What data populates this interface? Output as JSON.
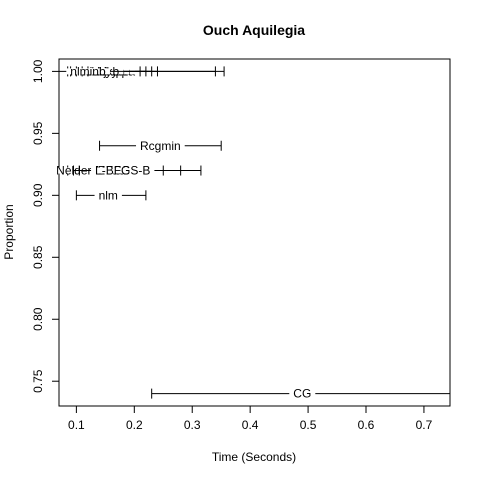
{
  "chart_data": {
    "type": "scatter",
    "title": "Ouch Aquilegia",
    "xlabel": "Time (Seconds)",
    "ylabel": "Proportion",
    "xlim": [
      0.07,
      0.745
    ],
    "ylim": [
      0.73,
      1.01
    ],
    "xticks": [
      "0.1",
      "0.2",
      "0.3",
      "0.4",
      "0.5",
      "0.6",
      "0.7"
    ],
    "xtick_values": [
      0.1,
      0.2,
      0.3,
      0.4,
      0.5,
      0.6,
      0.7
    ],
    "yticks": [
      "0.75",
      "0.80",
      "0.85",
      "0.90",
      "0.95",
      "1.00"
    ],
    "ytick_values": [
      0.75,
      0.8,
      0.85,
      0.9,
      0.95,
      1.0
    ],
    "grid": false,
    "series": [
      {
        "name": "newuoa",
        "x": 0.165,
        "y": 1.0,
        "xmin": 0.085,
        "xmax": 0.355
      },
      {
        "name": "bobyqa",
        "x": 0.16,
        "y": 1.0,
        "xmin": 0.1,
        "xmax": 0.34
      },
      {
        "name": "uobyqa",
        "x": 0.15,
        "y": 1.0,
        "xmin": 0.09,
        "xmax": 0.24
      },
      {
        "name": "nmkb",
        "x": 0.135,
        "y": 1.0,
        "xmin": 0.11,
        "xmax": 0.23
      },
      {
        "name": "hjkb",
        "x": 0.155,
        "y": 1.0,
        "xmin": 0.12,
        "xmax": 0.22
      },
      {
        "name": "nlminb",
        "x": 0.12,
        "y": 1.0,
        "xmin": 0.07,
        "xmax": 0.21
      },
      {
        "name": "Rcgmin",
        "x": 0.245,
        "y": 0.94,
        "xmin": 0.14,
        "xmax": 0.35
      },
      {
        "name": "Nelder-Mead",
        "x": 0.125,
        "y": 0.92,
        "xmin": 0.085,
        "xmax": 0.315
      },
      {
        "name": "BFGS",
        "x": 0.165,
        "y": 0.92,
        "xmin": 0.095,
        "xmax": 0.28
      },
      {
        "name": "L-BFGS-B",
        "x": 0.18,
        "y": 0.92,
        "xmin": 0.105,
        "xmax": 0.25
      },
      {
        "name": "nlm",
        "x": 0.155,
        "y": 0.9,
        "xmin": 0.1,
        "xmax": 0.22
      },
      {
        "name": "CG",
        "x": 0.49,
        "y": 0.74,
        "xmin": 0.23,
        "xmax": 0.76
      }
    ]
  }
}
